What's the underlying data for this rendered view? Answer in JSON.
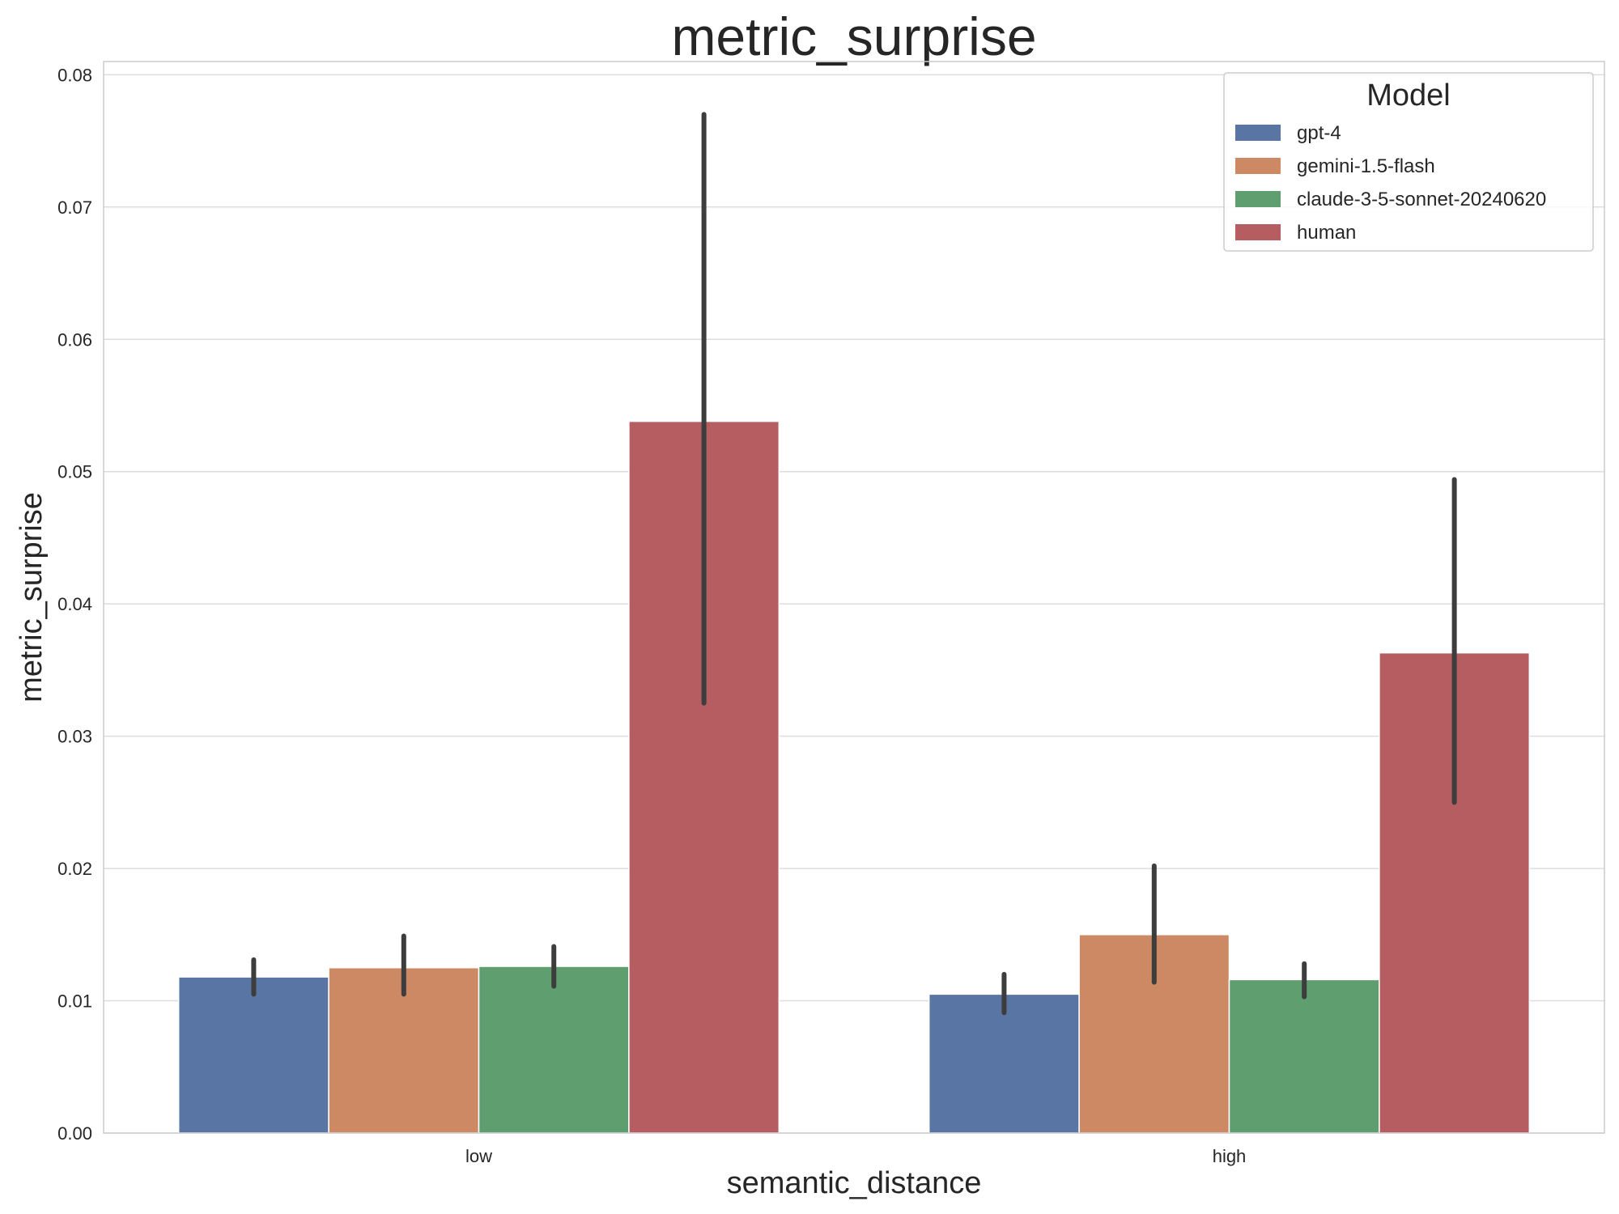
{
  "chart_data": {
    "type": "bar",
    "title": "metric_surprise",
    "xlabel": "semantic_distance",
    "ylabel": "metric_surprise",
    "categories": [
      "low",
      "high"
    ],
    "ylim": [
      0,
      0.081
    ],
    "yticks": [
      0.0,
      0.01,
      0.02,
      0.03,
      0.04,
      0.05,
      0.06,
      0.07,
      0.08
    ],
    "ytick_labels": [
      "0.00",
      "0.01",
      "0.02",
      "0.03",
      "0.04",
      "0.05",
      "0.06",
      "0.07",
      "0.08"
    ],
    "grid": true,
    "legend": {
      "title": "Model",
      "placement": "top-right"
    },
    "series": [
      {
        "name": "gpt-4",
        "color": "#5875a4",
        "values": [
          0.0118,
          0.0105
        ],
        "ci_low": [
          0.0105,
          0.0091
        ],
        "ci_high": [
          0.0131,
          0.012
        ]
      },
      {
        "name": "gemini-1.5-flash",
        "color": "#cc8963",
        "values": [
          0.0125,
          0.015
        ],
        "ci_low": [
          0.0105,
          0.0114
        ],
        "ci_high": [
          0.0149,
          0.0202
        ]
      },
      {
        "name": "claude-3-5-sonnet-20240620",
        "color": "#5f9e6e",
        "values": [
          0.0126,
          0.0116
        ],
        "ci_low": [
          0.0111,
          0.0103
        ],
        "ci_high": [
          0.0141,
          0.0128
        ]
      },
      {
        "name": "human",
        "color": "#b55d60",
        "values": [
          0.0538,
          0.0363
        ],
        "ci_low": [
          0.0325,
          0.025
        ],
        "ci_high": [
          0.077,
          0.0494
        ]
      }
    ]
  }
}
